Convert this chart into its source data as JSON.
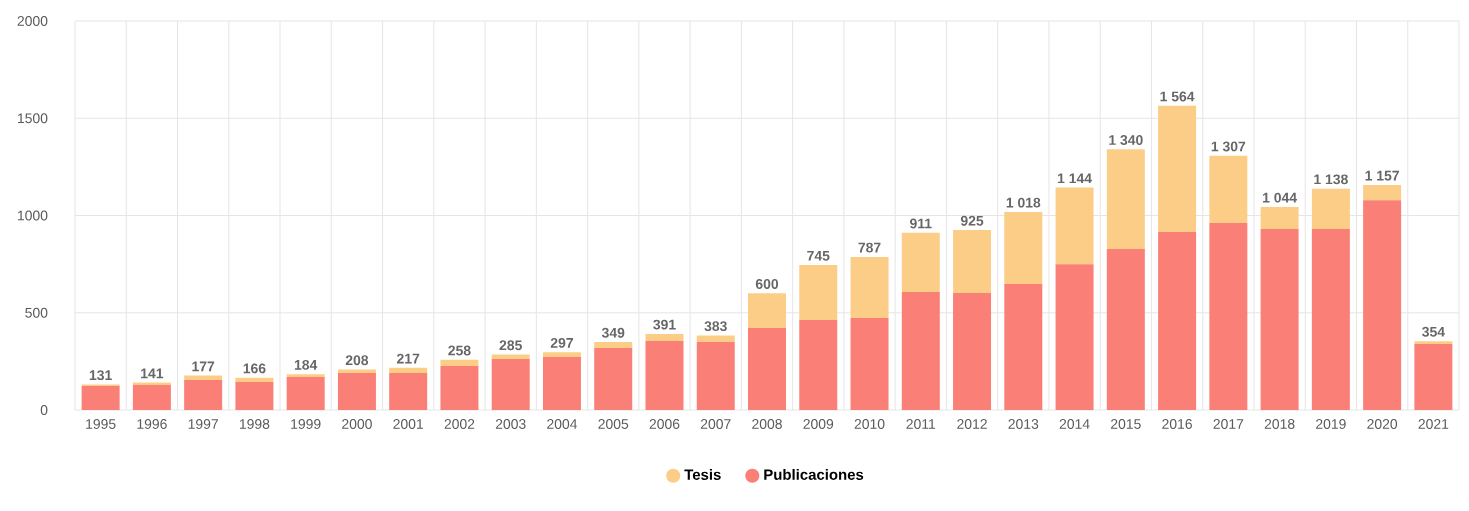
{
  "chart_data": {
    "type": "bar",
    "stacked": true,
    "categories": [
      "1995",
      "1996",
      "1997",
      "1998",
      "1999",
      "2000",
      "2001",
      "2002",
      "2003",
      "2004",
      "2005",
      "2006",
      "2007",
      "2008",
      "2009",
      "2010",
      "2011",
      "2012",
      "2013",
      "2014",
      "2015",
      "2016",
      "2017",
      "2018",
      "2019",
      "2020",
      "2021"
    ],
    "series": [
      {
        "name": "Publicaciones",
        "color": "#fa7f77",
        "values": [
          123,
          128,
          154,
          144,
          170,
          190,
          190,
          226,
          262,
          272,
          319,
          355,
          350,
          421,
          463,
          473,
          607,
          601,
          648,
          750,
          828,
          915,
          961,
          930,
          930,
          1079,
          339
        ]
      },
      {
        "name": "Tesis",
        "color": "#fbcd87",
        "values": [
          8,
          13,
          23,
          22,
          14,
          18,
          27,
          32,
          23,
          25,
          30,
          36,
          33,
          179,
          282,
          314,
          304,
          324,
          370,
          394,
          512,
          649,
          346,
          114,
          208,
          78,
          15
        ]
      }
    ],
    "totals": [
      "131",
      "141",
      "177",
      "166",
      "184",
      "208",
      "217",
      "258",
      "285",
      "297",
      "349",
      "391",
      "383",
      "600",
      "745",
      "787",
      "911",
      "925",
      "1 018",
      "1 144",
      "1 340",
      "1 564",
      "1 307",
      "1 044",
      "1 138",
      "1 157",
      "354"
    ],
    "ylim": [
      0,
      2000
    ],
    "yticks": [
      0,
      500,
      1000,
      1500,
      2000
    ],
    "grid": true,
    "legend": "bottom"
  }
}
